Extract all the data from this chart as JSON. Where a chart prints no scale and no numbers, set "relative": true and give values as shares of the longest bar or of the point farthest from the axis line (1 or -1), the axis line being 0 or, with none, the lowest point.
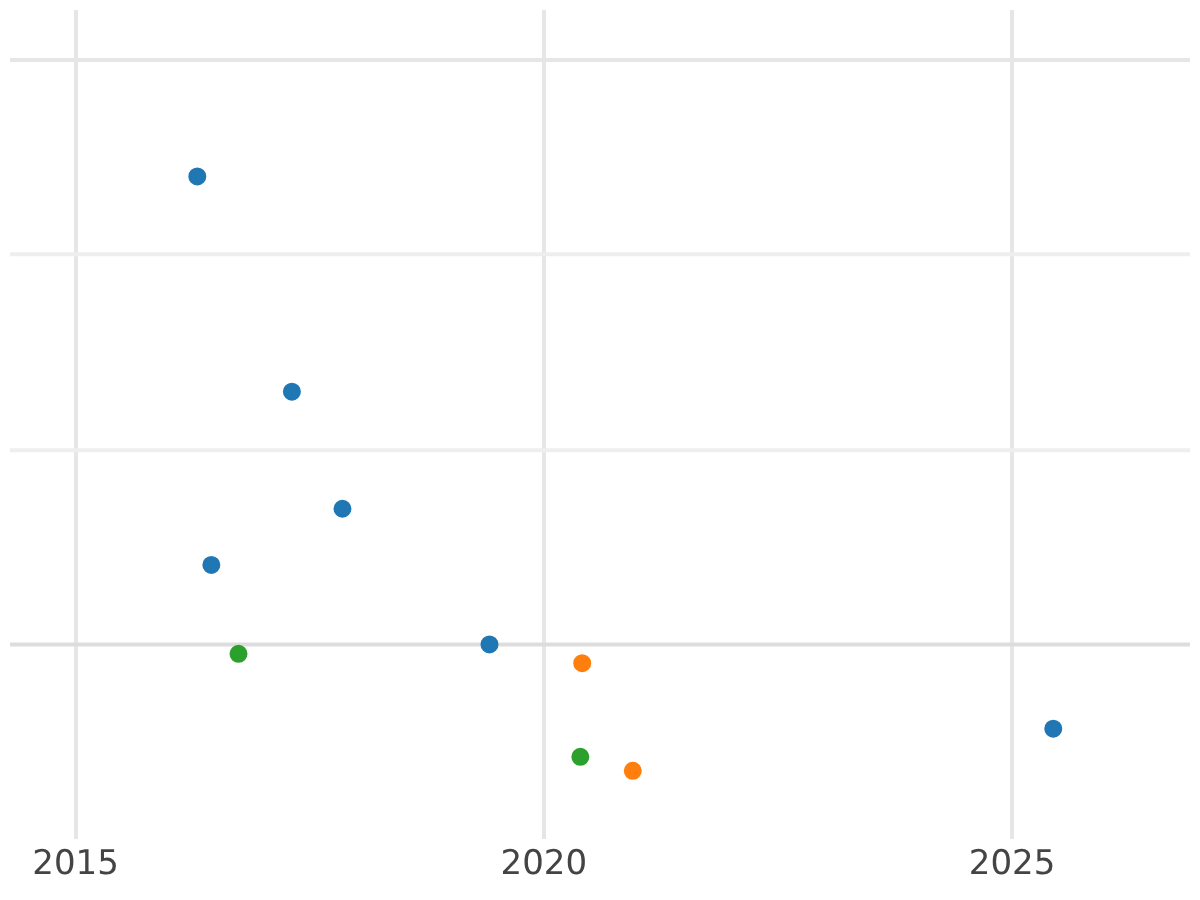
{
  "chart_data": {
    "type": "scatter",
    "relative": true,
    "xlim": [
      2014.3,
      2026.9
    ],
    "xticks": [
      2015,
      2020,
      2025
    ],
    "grid": "x",
    "marker": "circle",
    "ref_lines": [
      {
        "axis": "y",
        "value": 0,
        "color": "#dddddd"
      },
      {
        "axis": "y",
        "value": 0.415,
        "color": "#eeeeee"
      },
      {
        "axis": "y",
        "value": 0.834,
        "color": "#eeeeee"
      },
      {
        "axis": "y",
        "value": 1.249,
        "color": "#e6e6e6"
      }
    ],
    "series": [
      {
        "color": "#1f77b4",
        "x": [
          2016.3,
          2017.31,
          2017.85,
          2016.45,
          2019.42,
          2025.44
        ],
        "values": [
          1,
          0.54,
          0.29,
          0.17,
          0,
          -0.18
        ]
      },
      {
        "color": "#ff7f0e",
        "x": [
          2020.41,
          2020.95
        ],
        "values": [
          -0.04,
          -0.27
        ]
      },
      {
        "color": "#2ca02c",
        "x": [
          2016.74,
          2020.39
        ],
        "values": [
          -0.02,
          -0.24
        ]
      }
    ]
  }
}
